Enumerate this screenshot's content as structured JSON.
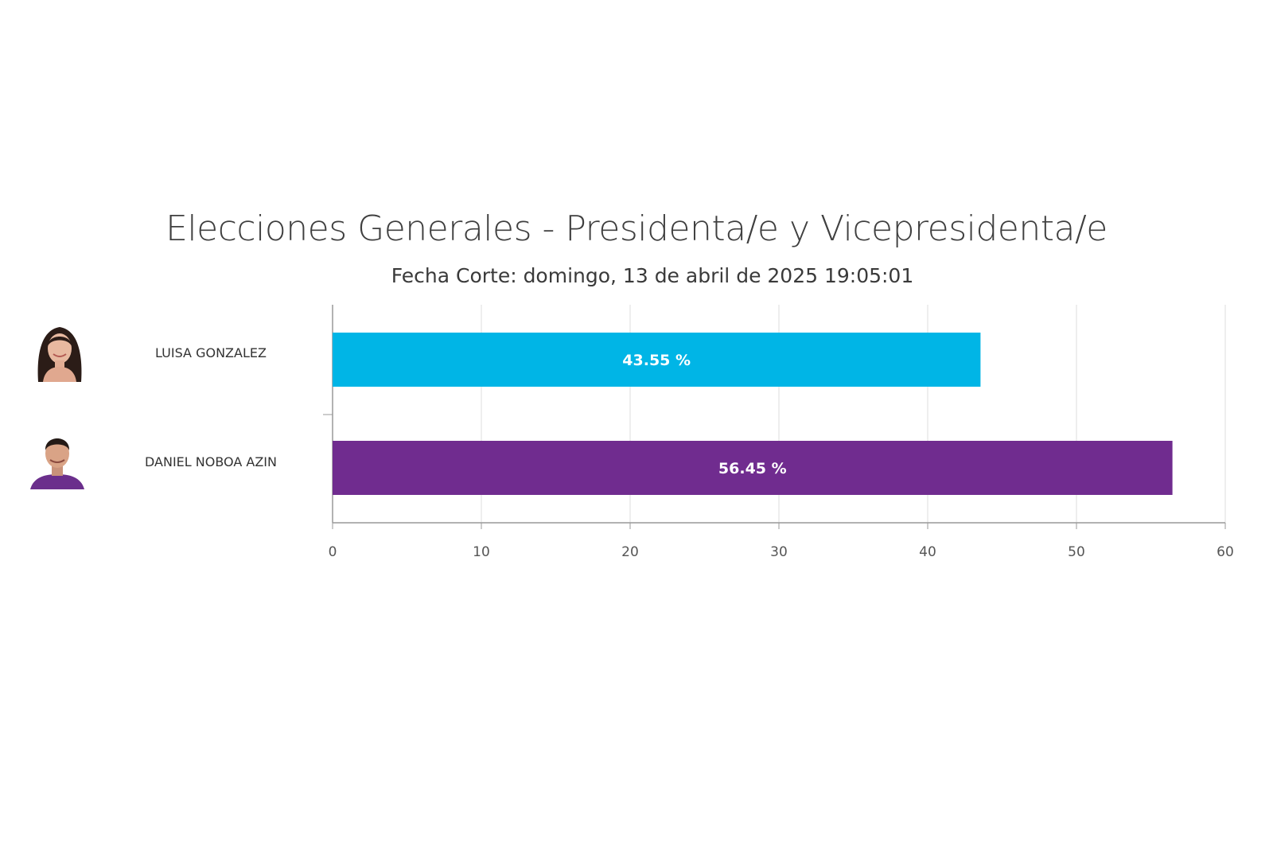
{
  "chart_data": {
    "type": "bar",
    "orientation": "horizontal",
    "title": "Elecciones Generales - Presidenta/e y Vicepresidenta/e",
    "subtitle": "Fecha Corte: domingo, 13 de abril de 2025 19:05:01",
    "categories": [
      "LUISA GONZALEZ",
      "DANIEL NOBOA AZIN"
    ],
    "values": [
      43.55,
      56.45
    ],
    "value_labels": [
      "43.55 %",
      "56.45 %"
    ],
    "colors": [
      "#00b5e6",
      "#702c8f"
    ],
    "xlim": [
      0,
      60
    ],
    "xticks": [
      0,
      10,
      20,
      30,
      40,
      50,
      60
    ],
    "grid": true,
    "xlabel": "",
    "ylabel": ""
  },
  "candidates": [
    {
      "name": "LUISA GONZALEZ",
      "avatar": "woman-portrait-icon"
    },
    {
      "name": "DANIEL NOBOA AZIN",
      "avatar": "man-portrait-icon"
    }
  ]
}
